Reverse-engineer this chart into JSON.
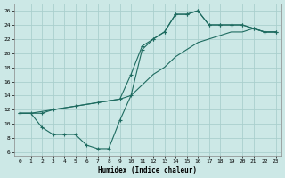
{
  "xlabel": "Humidex (Indice chaleur)",
  "xlim": [
    -0.5,
    23.5
  ],
  "ylim": [
    5.5,
    27.0
  ],
  "xticks": [
    0,
    1,
    2,
    3,
    4,
    5,
    6,
    7,
    8,
    9,
    10,
    11,
    12,
    13,
    14,
    15,
    16,
    17,
    18,
    19,
    20,
    21,
    22,
    23
  ],
  "yticks": [
    6,
    8,
    10,
    12,
    14,
    16,
    18,
    20,
    22,
    24,
    26
  ],
  "bg_color": "#cce8e6",
  "grid_color": "#aacfcd",
  "line_color": "#1e6b60",
  "line1": {
    "x": [
      0,
      1,
      2,
      3,
      4,
      5,
      6,
      7,
      8,
      9,
      10,
      11,
      12,
      13,
      14,
      15,
      16,
      17,
      18,
      19,
      20,
      21,
      22,
      23
    ],
    "y": [
      11.5,
      11.5,
      9.5,
      8.5,
      8.5,
      8.5,
      7.0,
      6.5,
      6.5,
      10.5,
      14.0,
      20.5,
      22.0,
      23.0,
      25.5,
      25.5,
      26.0,
      24.0,
      24.0,
      24.0,
      24.0,
      23.5,
      23.0,
      23.0
    ]
  },
  "line2": {
    "x": [
      0,
      1,
      3,
      5,
      7,
      9,
      10,
      11,
      12,
      13,
      14,
      15,
      16,
      17,
      18,
      19,
      20,
      21,
      22,
      23
    ],
    "y": [
      11.5,
      11.5,
      12.0,
      12.5,
      13.0,
      13.5,
      14.0,
      15.5,
      17.0,
      18.0,
      19.5,
      20.5,
      21.5,
      22.0,
      22.5,
      23.0,
      23.0,
      23.5,
      23.0,
      23.0
    ]
  },
  "line3": {
    "x": [
      0,
      2,
      3,
      5,
      7,
      9,
      10,
      11,
      12,
      13,
      14,
      15,
      16,
      17,
      18,
      19,
      20,
      21,
      22,
      23
    ],
    "y": [
      11.5,
      11.5,
      12.0,
      12.5,
      13.0,
      13.5,
      17.0,
      21.0,
      22.0,
      23.0,
      25.5,
      25.5,
      26.0,
      24.0,
      24.0,
      24.0,
      24.0,
      23.5,
      23.0,
      23.0
    ]
  }
}
